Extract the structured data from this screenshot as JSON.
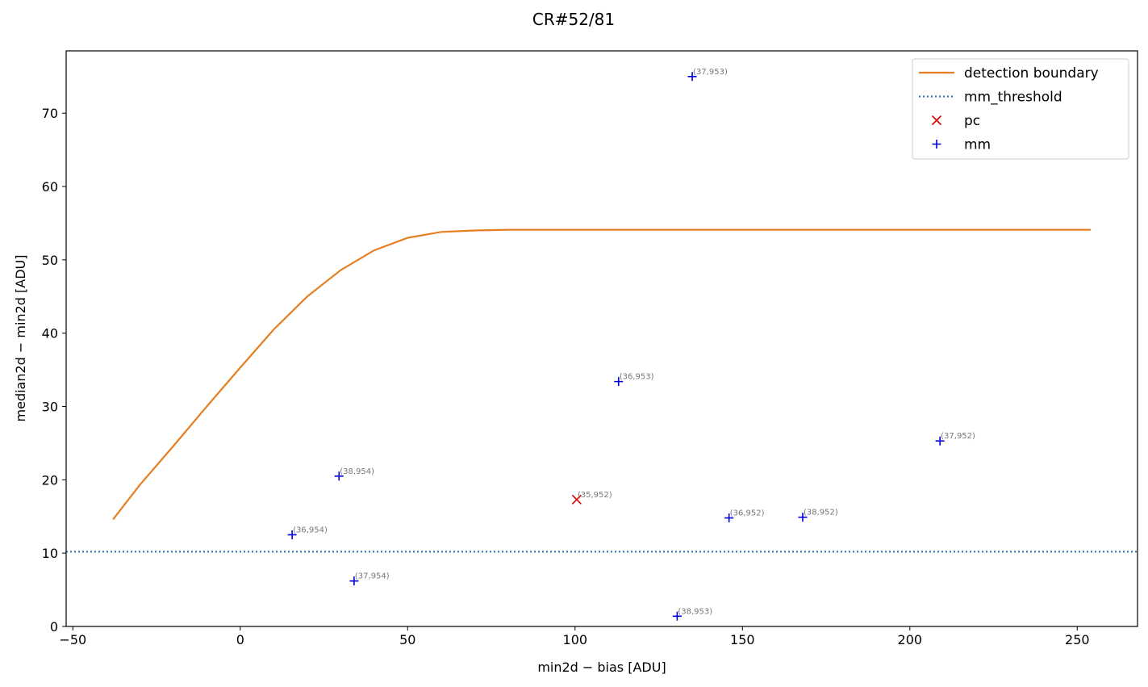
{
  "chart_data": {
    "type": "scatter",
    "title": "CR#52/81",
    "xlabel": "min2d − bias  [ADU]",
    "ylabel": "median2d − min2d  [ADU]",
    "xlim": [
      -52,
      268
    ],
    "ylim": [
      0,
      78.5
    ],
    "xticks": [
      -50,
      0,
      50,
      100,
      150,
      200,
      250
    ],
    "xtick_labels": [
      "−50",
      "0",
      "50",
      "100",
      "150",
      "200",
      "250"
    ],
    "yticks": [
      0,
      10,
      20,
      30,
      40,
      50,
      60,
      70
    ],
    "ytick_labels": [
      "0",
      "10",
      "20",
      "30",
      "40",
      "50",
      "60",
      "70"
    ],
    "grid": false,
    "legend_position": "top-right",
    "series": [
      {
        "name": "detection boundary",
        "kind": "line",
        "style": "solid",
        "color": "#e67e22",
        "x": [
          -38,
          -30,
          -20,
          -10,
          0,
          10,
          20,
          30,
          40,
          50,
          60,
          70,
          80,
          90,
          100,
          110,
          120,
          130,
          150,
          200,
          254
        ],
        "y": [
          14.6,
          19.3,
          24.6,
          30.0,
          35.3,
          40.5,
          45.0,
          48.6,
          51.3,
          53.0,
          53.8,
          54.0,
          54.1,
          54.1,
          54.1,
          54.1,
          54.1,
          54.1,
          54.1,
          54.1,
          54.1
        ]
      },
      {
        "name": "mm_threshold",
        "kind": "hline",
        "style": "dotted",
        "color": "#3a78b5",
        "y": 10.2
      },
      {
        "name": "pc",
        "kind": "points",
        "marker": "x",
        "color": "#dd0000",
        "points": [
          {
            "x": 100.5,
            "y": 17.3,
            "label": "(35,952)"
          }
        ]
      },
      {
        "name": "mm",
        "kind": "points",
        "marker": "+",
        "color": "#0000dd",
        "points": [
          {
            "x": 135,
            "y": 75.0,
            "label": "(37,953)"
          },
          {
            "x": 113,
            "y": 33.4,
            "label": "(36,953)"
          },
          {
            "x": 209,
            "y": 25.3,
            "label": "(37,952)"
          },
          {
            "x": 29.5,
            "y": 20.5,
            "label": "(38,954)"
          },
          {
            "x": 15.5,
            "y": 12.5,
            "label": "(36,954)"
          },
          {
            "x": 146,
            "y": 14.8,
            "label": "(36,952)"
          },
          {
            "x": 168,
            "y": 14.9,
            "label": "(38,952)"
          },
          {
            "x": 34,
            "y": 6.2,
            "label": "(37,954)"
          },
          {
            "x": 130.5,
            "y": 1.4,
            "label": "(38,953)"
          }
        ]
      }
    ]
  }
}
